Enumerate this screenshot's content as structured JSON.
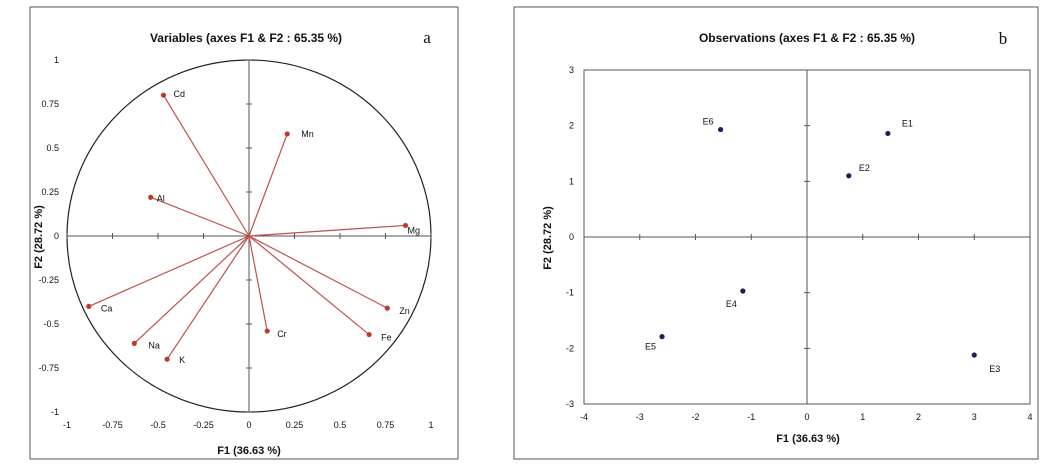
{
  "chart_data": [
    {
      "type": "scatter",
      "panel_label": "a",
      "title": "Variables (axes F1 & F2 : 65.35 %)",
      "xlabel": "F1 (36.63 %)",
      "ylabel": "F2 (28.72 %)",
      "xlim": [
        -1,
        1
      ],
      "ylim": [
        -1,
        1
      ],
      "xticks": [
        "-1",
        "-0.75",
        "-0.5",
        "-0.25",
        "0",
        "0.25",
        "0.5",
        "0.75",
        "1"
      ],
      "yticks": [
        "-1",
        "-0.75",
        "-0.5",
        "-0.25",
        "0",
        "0.25",
        "0.5",
        "0.75",
        "1"
      ],
      "correlation_circle": true,
      "vectors_from_origin": true,
      "points": [
        {
          "label": "Cd",
          "x": -0.47,
          "y": 0.8
        },
        {
          "label": "Mn",
          "x": 0.21,
          "y": 0.58
        },
        {
          "label": "Al",
          "x": -0.54,
          "y": 0.22
        },
        {
          "label": "Mg",
          "x": 0.86,
          "y": 0.06
        },
        {
          "label": "Ca",
          "x": -0.88,
          "y": -0.4
        },
        {
          "label": "Zn",
          "x": 0.76,
          "y": -0.41
        },
        {
          "label": "Cr",
          "x": 0.1,
          "y": -0.54
        },
        {
          "label": "Fe",
          "x": 0.66,
          "y": -0.56
        },
        {
          "label": "Na",
          "x": -0.63,
          "y": -0.61
        },
        {
          "label": "K",
          "x": -0.45,
          "y": -0.7
        }
      ],
      "colors": {
        "vector": "#c0504d",
        "point": "#c0392b"
      }
    },
    {
      "type": "scatter",
      "panel_label": "b",
      "title": "Observations (axes F1 & F2 : 65.35 %)",
      "xlabel": "F1 (36.63 %)",
      "ylabel": "F2 (28.72 %)",
      "xlim": [
        -4,
        4
      ],
      "ylim": [
        -3,
        3
      ],
      "xticks": [
        "-4",
        "-3",
        "-2",
        "-1",
        "0",
        "1",
        "2",
        "3",
        "4"
      ],
      "yticks": [
        "-3",
        "-2",
        "-1",
        "0",
        "1",
        "2",
        "3"
      ],
      "points": [
        {
          "label": "E6",
          "x": -1.55,
          "y": 1.93
        },
        {
          "label": "E1",
          "x": 1.45,
          "y": 1.86
        },
        {
          "label": "E2",
          "x": 0.75,
          "y": 1.1
        },
        {
          "label": "E4",
          "x": -1.15,
          "y": -0.97
        },
        {
          "label": "E5",
          "x": -2.6,
          "y": -1.79
        },
        {
          "label": "E3",
          "x": 3.0,
          "y": -2.12
        }
      ],
      "colors": {
        "point": "#1f1f5c"
      }
    }
  ]
}
